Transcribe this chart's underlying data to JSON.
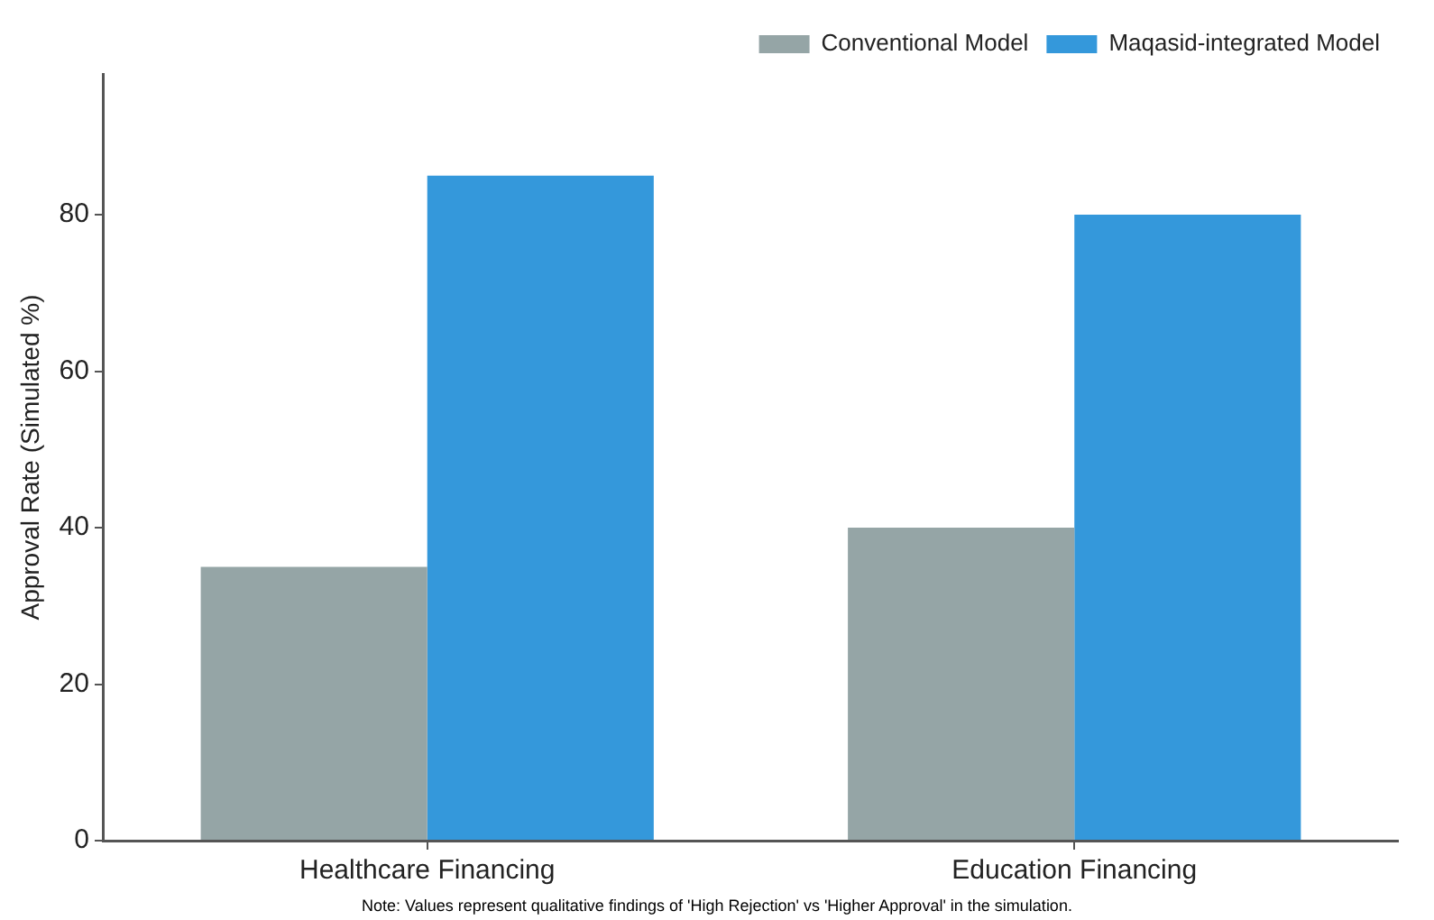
{
  "chart_data": {
    "type": "bar",
    "ylabel": "Approval Rate (Simulated %)",
    "categories": [
      "Healthcare Financing",
      "Education Financing"
    ],
    "series": [
      {
        "name": "Conventional Model",
        "color": "#95a5a6",
        "values": [
          35,
          40
        ]
      },
      {
        "name": "Maqasid-integrated Model",
        "color": "#3498db",
        "values": [
          85,
          80
        ]
      }
    ],
    "ylim": [
      0,
      98
    ],
    "yticks": [
      0,
      20,
      40,
      60,
      80
    ],
    "grid": false,
    "legend": "top right",
    "annotations": [
      "Note: Values represent qualitative findings of 'High Rejection' vs 'Higher Approval' in the simulation."
    ]
  }
}
